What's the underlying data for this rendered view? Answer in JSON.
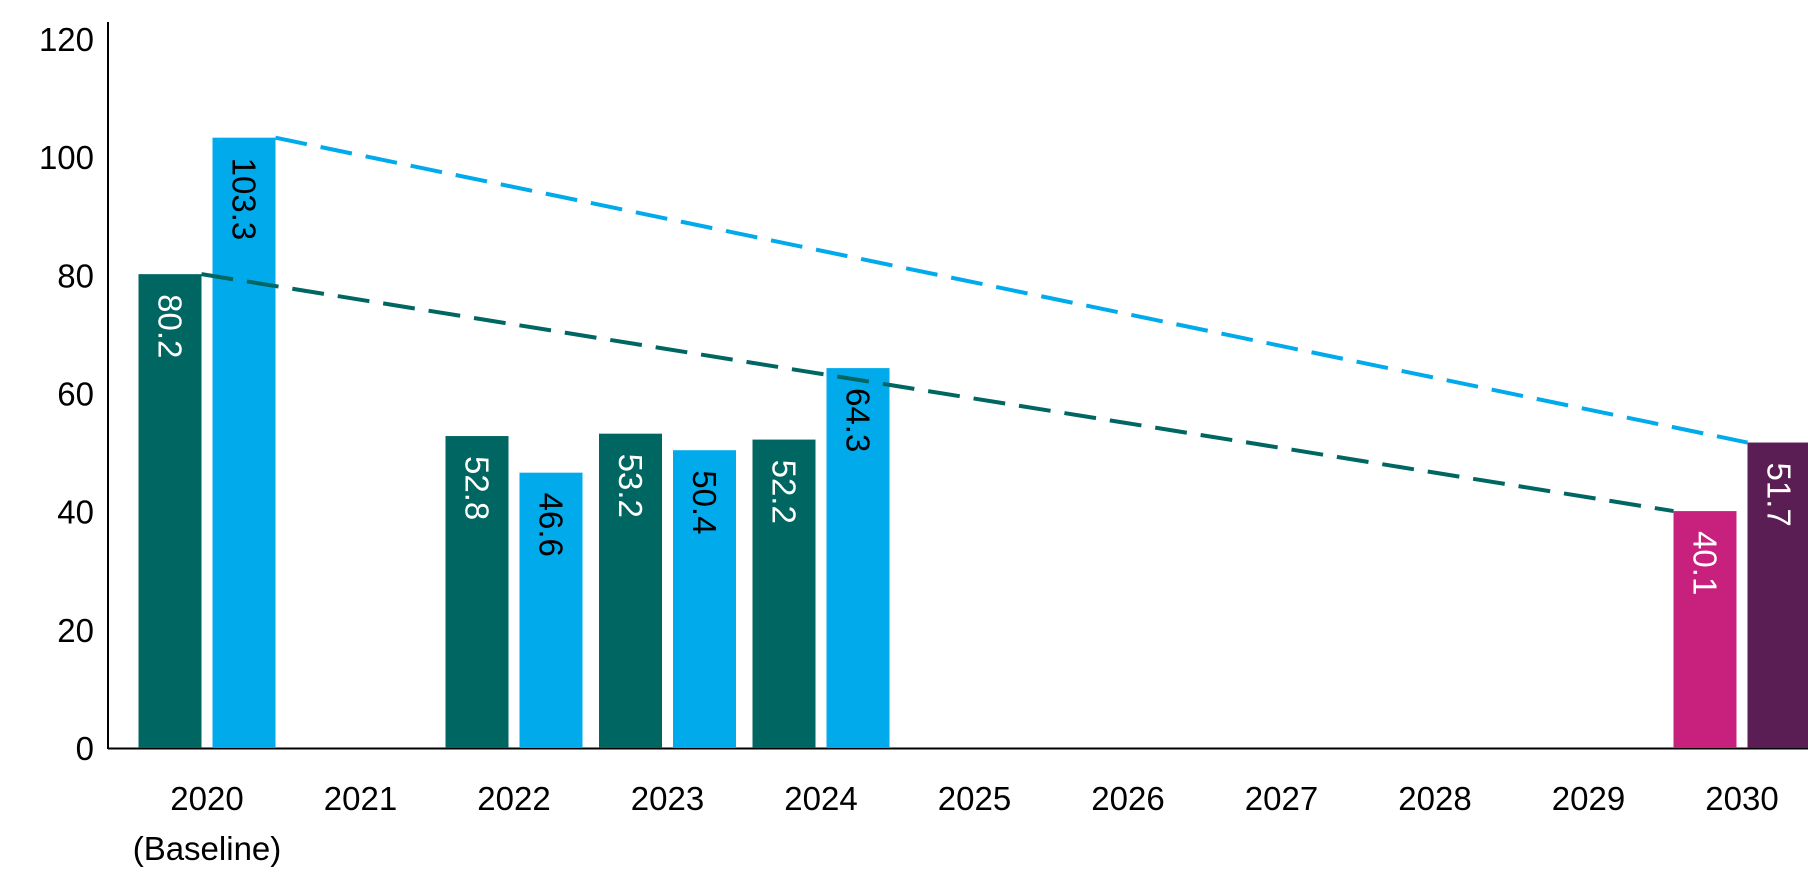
{
  "chart_data": {
    "type": "bar",
    "categories": [
      "2020",
      "2021",
      "2022",
      "2023",
      "2024",
      "2025",
      "2026",
      "2027",
      "2028",
      "2029",
      "2030"
    ],
    "category_sublabels": {
      "2020": "(Baseline)"
    },
    "series": [
      {
        "values": [
          80.2,
          null,
          52.8,
          53.2,
          52.2,
          null,
          null,
          null,
          null,
          null,
          null
        ],
        "color": "#006661",
        "label_color": "#ffffff"
      },
      {
        "values": [
          103.3,
          null,
          46.6,
          50.4,
          64.3,
          null,
          null,
          null,
          null,
          null,
          null
        ],
        "color": "#00aaeb",
        "label_color": "#000000"
      }
    ],
    "targets": [
      {
        "category": "2030",
        "value": 40.1,
        "color": "#c8217d",
        "label_color": "#ffffff",
        "slot": 0
      },
      {
        "category": "2030",
        "value": 51.7,
        "color": "#5a1e55",
        "label_color": "#ffffff",
        "slot": 1
      }
    ],
    "trend_lines": [
      {
        "from": {
          "category": "2020",
          "value": 80.2
        },
        "to": {
          "category": "2030",
          "value": 40.1
        },
        "color": "#006661",
        "style": "dashed"
      },
      {
        "from": {
          "category": "2020",
          "value": 103.3
        },
        "to": {
          "category": "2030",
          "value": 51.7
        },
        "color": "#00aaeb",
        "style": "dashed"
      }
    ],
    "y_ticks": [
      0,
      20,
      40,
      60,
      80,
      100,
      120
    ],
    "ylim": [
      0,
      120
    ],
    "grid": false,
    "legend": "none",
    "data_labels": "vertical"
  }
}
